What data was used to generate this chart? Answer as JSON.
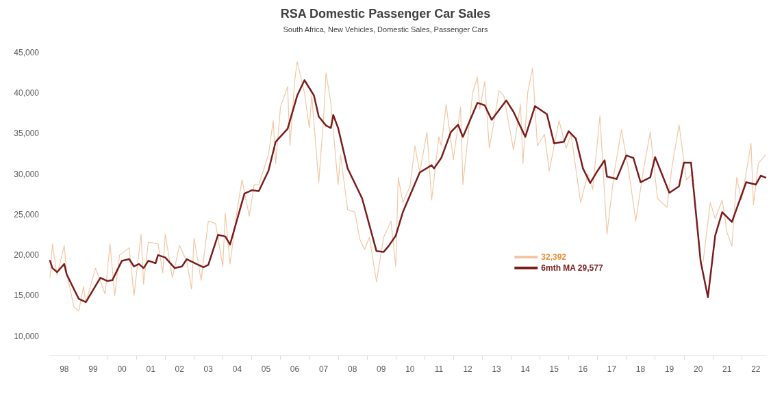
{
  "chart_data": {
    "type": "line",
    "title": "RSA Domestic Passenger Car Sales",
    "subtitle": "South Africa, New Vehicles, Domestic Sales, Passenger Cars",
    "xlim": [
      "1998-01",
      "2022-11"
    ],
    "xticks": [
      {
        "value": "1998-07",
        "label": "98"
      },
      {
        "value": "1999-07",
        "label": "99"
      },
      {
        "value": "2000-07",
        "label": "00"
      },
      {
        "value": "2001-07",
        "label": "01"
      },
      {
        "value": "2002-07",
        "label": "02"
      },
      {
        "value": "2003-07",
        "label": "03"
      },
      {
        "value": "2004-07",
        "label": "04"
      },
      {
        "value": "2005-07",
        "label": "05"
      },
      {
        "value": "2006-07",
        "label": "06"
      },
      {
        "value": "2007-07",
        "label": "07"
      },
      {
        "value": "2008-07",
        "label": "08"
      },
      {
        "value": "2009-07",
        "label": "09"
      },
      {
        "value": "2010-07",
        "label": "10"
      },
      {
        "value": "2011-07",
        "label": "11"
      },
      {
        "value": "2012-07",
        "label": "12"
      },
      {
        "value": "2013-07",
        "label": "13"
      },
      {
        "value": "2014-07",
        "label": "14"
      },
      {
        "value": "2015-07",
        "label": "15"
      },
      {
        "value": "2016-07",
        "label": "16"
      },
      {
        "value": "2017-07",
        "label": "17"
      },
      {
        "value": "2018-07",
        "label": "18"
      },
      {
        "value": "2019-07",
        "label": "19"
      },
      {
        "value": "2020-07",
        "label": "20"
      },
      {
        "value": "2021-07",
        "label": "21"
      },
      {
        "value": "2022-07",
        "label": "22"
      },
      {
        "value": "1999",
        "label": null
      },
      {
        "value": "2000",
        "label": null
      },
      {
        "value": "2001",
        "label": null
      },
      {
        "value": "2002",
        "label": null
      },
      {
        "value": "2003",
        "label": null
      },
      {
        "value": "2004",
        "label": null
      },
      {
        "value": "2005",
        "label": null
      },
      {
        "value": "2006",
        "label": null
      },
      {
        "value": "2007",
        "label": null
      },
      {
        "value": "2008",
        "label": null
      },
      {
        "value": "2009",
        "label": null
      },
      {
        "value": "2010",
        "label": null
      },
      {
        "value": "2011",
        "label": null
      },
      {
        "value": "2012",
        "label": null
      },
      {
        "value": "2013",
        "label": null
      },
      {
        "value": "2014",
        "label": null
      },
      {
        "value": "2015",
        "label": null
      },
      {
        "value": "2016",
        "label": null
      },
      {
        "value": "2017",
        "label": null
      },
      {
        "value": "2018",
        "label": null
      },
      {
        "value": "2019",
        "label": null
      },
      {
        "value": "2020",
        "label": null
      },
      {
        "value": "2021",
        "label": null
      },
      {
        "value": "2022",
        "label": null
      }
    ],
    "ylim": [
      7600,
      45000
    ],
    "yticks": [
      {
        "value": 10000,
        "label": "10,000"
      },
      {
        "value": 15000,
        "label": "15,000"
      },
      {
        "value": 20000,
        "label": "20,000"
      },
      {
        "value": 25000,
        "label": "25,000"
      },
      {
        "value": 30000,
        "label": "30,000"
      },
      {
        "value": 35000,
        "label": "35,000"
      },
      {
        "value": 40000,
        "label": "40,000"
      },
      {
        "value": 45000,
        "label": "45,000"
      }
    ],
    "grid": false,
    "legend": "right",
    "marker": "none",
    "line_style": "solid",
    "series": [
      {
        "name": "32,392",
        "color": "#f3c7a3",
        "x": [
          "1998-01",
          "1998-02",
          "1998-04",
          "1998-07",
          "1998-08",
          "1998-11",
          "1999-01",
          "1999-03",
          "1999-04",
          "1999-08",
          "1999-12",
          "2000-02",
          "2000-04",
          "2000-06",
          "2000-10",
          "2000-12",
          "2001-03",
          "2001-04",
          "2001-06",
          "2001-10",
          "2001-12",
          "2002-01",
          "2002-04",
          "2002-07",
          "2002-10",
          "2002-12",
          "2003-01",
          "2003-04",
          "2003-07",
          "2003-10",
          "2004-01",
          "2004-02",
          "2004-04",
          "2004-07",
          "2004-09",
          "2004-12",
          "2005-02",
          "2005-04",
          "2005-08",
          "2005-10",
          "2005-11",
          "2006-01",
          "2006-04",
          "2006-05",
          "2006-07",
          "2006-08",
          "2006-11",
          "2007-01",
          "2007-02",
          "2007-05",
          "2007-07",
          "2007-08",
          "2007-10",
          "2008-01",
          "2008-02",
          "2008-05",
          "2008-08",
          "2008-10",
          "2008-12",
          "2009-02",
          "2009-05",
          "2009-08",
          "2009-11",
          "2010-01",
          "2010-02",
          "2010-04",
          "2010-07",
          "2010-09",
          "2010-11",
          "2011-02",
          "2011-04",
          "2011-07",
          "2011-08",
          "2011-10",
          "2012-01",
          "2012-04",
          "2012-05",
          "2012-09",
          "2012-11",
          "2012-12",
          "2013-02",
          "2013-04",
          "2013-06",
          "2013-08",
          "2013-10",
          "2014-02",
          "2014-05",
          "2014-06",
          "2014-08",
          "2014-10",
          "2014-12",
          "2015-03",
          "2015-05",
          "2015-09",
          "2015-12",
          "2016-02",
          "2016-06",
          "2016-09",
          "2016-11",
          "2017-02",
          "2017-05",
          "2017-08",
          "2017-11",
          "2018-02",
          "2018-05",
          "2018-08",
          "2018-11",
          "2019-02",
          "2019-06",
          "2019-08",
          "2019-11",
          "2020-02",
          "2020-05",
          "2020-06",
          "2020-07",
          "2020-09",
          "2020-12",
          "2021-02",
          "2021-05",
          "2021-07",
          "2021-09",
          "2021-11",
          "2022-01",
          "2022-03",
          "2022-05",
          "2022-06",
          "2022-08",
          "2022-11"
        ],
        "values": [
          17200,
          21400,
          17500,
          21200,
          17800,
          13600,
          13100,
          16100,
          14100,
          18400,
          15200,
          21400,
          15000,
          20000,
          20900,
          15000,
          22600,
          16400,
          21600,
          21400,
          17800,
          22600,
          17200,
          21200,
          19200,
          15800,
          22100,
          16900,
          24200,
          23900,
          18600,
          25200,
          18900,
          25600,
          29300,
          24800,
          28700,
          28700,
          32400,
          36600,
          31300,
          38300,
          40800,
          33500,
          41600,
          43900,
          40000,
          35700,
          39700,
          29000,
          36900,
          42500,
          38800,
          28700,
          32400,
          25600,
          25300,
          22000,
          20700,
          22200,
          16700,
          22200,
          24200,
          18600,
          29600,
          26500,
          28500,
          33500,
          30200,
          35200,
          26800,
          34600,
          33500,
          38600,
          31800,
          38300,
          28700,
          40000,
          42000,
          38000,
          41400,
          33200,
          36600,
          40300,
          39700,
          33000,
          38600,
          31300,
          40100,
          43100,
          33500,
          34900,
          30400,
          36600,
          33200,
          34900,
          26500,
          30000,
          28100,
          37200,
          22600,
          30200,
          35500,
          30400,
          24200,
          30200,
          35200,
          27000,
          25900,
          30700,
          36100,
          29300,
          30200,
          null,
          null,
          19200,
          26500,
          24500,
          26800,
          22800,
          21100,
          29600,
          26800,
          30200,
          33800,
          26200,
          31300,
          32392
        ]
      },
      {
        "name": "6mth MA 29,577",
        "color": "#7b1c1c",
        "x": [
          "1998-01",
          "1998-02",
          "1998-04",
          "1998-07",
          "1998-08",
          "1999-01",
          "1999-04",
          "1999-10",
          "2000-01",
          "2000-03",
          "2000-07",
          "2000-10",
          "2000-12",
          "2001-02",
          "2001-04",
          "2001-06",
          "2001-09",
          "2001-10",
          "2002-01",
          "2002-05",
          "2002-08",
          "2002-10",
          "2003-02",
          "2003-05",
          "2003-07",
          "2003-11",
          "2004-02",
          "2004-04",
          "2004-10",
          "2005-01",
          "2005-04",
          "2005-08",
          "2005-11",
          "2006-04",
          "2006-08",
          "2006-11",
          "2007-03",
          "2007-05",
          "2007-08",
          "2007-10",
          "2007-11",
          "2008-01",
          "2008-05",
          "2008-11",
          "2009-05",
          "2009-08",
          "2009-10",
          "2010-01",
          "2010-04",
          "2010-11",
          "2011-04",
          "2011-05",
          "2011-08",
          "2011-12",
          "2012-03",
          "2012-05",
          "2012-11",
          "2013-02",
          "2013-05",
          "2013-11",
          "2014-02",
          "2014-07",
          "2014-11",
          "2015-04",
          "2015-07",
          "2015-11",
          "2016-01",
          "2016-04",
          "2016-07",
          "2016-10",
          "2017-01",
          "2017-04",
          "2017-05",
          "2017-09",
          "2018-01",
          "2018-04",
          "2018-07",
          "2018-11",
          "2019-01",
          "2019-07",
          "2019-11",
          "2020-01",
          "2020-04",
          "2020-08",
          "2020-11",
          "2021-02",
          "2021-05",
          "2021-09",
          "2022-03",
          "2022-07",
          "2022-09",
          "2022-11"
        ],
        "values": [
          19300,
          18400,
          17900,
          18900,
          17600,
          14600,
          14200,
          17200,
          16800,
          16900,
          19300,
          19500,
          18600,
          18900,
          18400,
          19300,
          19000,
          20000,
          19700,
          18400,
          18600,
          19500,
          18900,
          18500,
          18800,
          22500,
          22300,
          21300,
          27600,
          28000,
          27900,
          30400,
          34000,
          35600,
          39700,
          41600,
          39700,
          37100,
          36000,
          35700,
          37300,
          35700,
          30700,
          27000,
          20500,
          20400,
          21100,
          22400,
          25300,
          30200,
          31100,
          30700,
          32000,
          35200,
          36100,
          34600,
          38800,
          38500,
          36700,
          39100,
          37700,
          34600,
          38400,
          37400,
          33800,
          34000,
          35300,
          34400,
          30700,
          28900,
          30400,
          31700,
          29700,
          29400,
          32300,
          32000,
          29000,
          29600,
          32100,
          27700,
          28500,
          31400,
          31400,
          19200,
          14800,
          22400,
          25300,
          24100,
          29000,
          28700,
          29800,
          29577
        ]
      }
    ]
  }
}
